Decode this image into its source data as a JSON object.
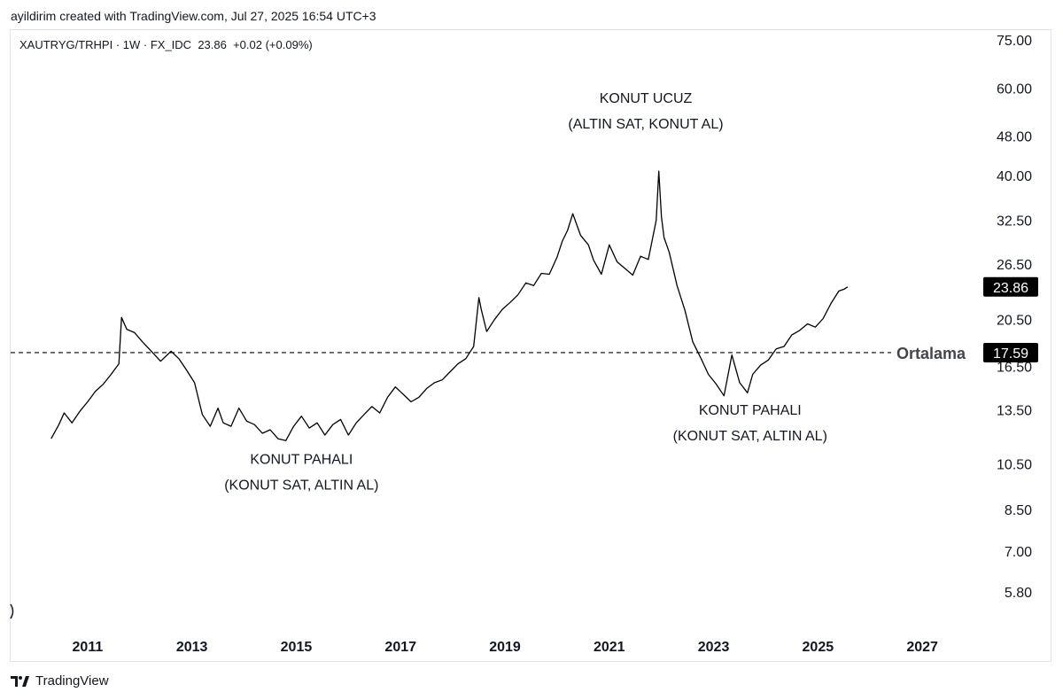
{
  "header": {
    "credit": "ayildirim created with TradingView.com, Jul 27, 2025 16:54 UTC+3"
  },
  "legend": {
    "symbol": "XAUTRYG/TRHPI",
    "interval": "1W",
    "source": "FX_IDC",
    "last": "23.86",
    "change": "+0.02 (+0.09%)"
  },
  "footer": {
    "brand": "TradingView"
  },
  "colors": {
    "line": "#000000",
    "text": "#131722",
    "grid_border": "#e0e3eb",
    "tag_bg": "#000000"
  },
  "chart_data": {
    "type": "line",
    "y_scale": "log",
    "ylim": [
      5.0,
      80.0
    ],
    "xlim": [
      2010.0,
      2028.0
    ],
    "y_ticks": [
      {
        "value": 75.0,
        "label": "75.00"
      },
      {
        "value": 60.0,
        "label": "60.00"
      },
      {
        "value": 48.0,
        "label": "48.00"
      },
      {
        "value": 40.0,
        "label": "40.00"
      },
      {
        "value": 32.5,
        "label": "32.50"
      },
      {
        "value": 26.5,
        "label": "26.50"
      },
      {
        "value": 20.5,
        "label": "20.50"
      },
      {
        "value": 16.5,
        "label": "16.50"
      },
      {
        "value": 13.5,
        "label": "13.50"
      },
      {
        "value": 10.5,
        "label": "10.50"
      },
      {
        "value": 8.5,
        "label": "8.50"
      },
      {
        "value": 7.0,
        "label": "7.00"
      },
      {
        "value": 5.8,
        "label": "5.80"
      }
    ],
    "x_ticks": [
      {
        "value": 2011,
        "label": "2011"
      },
      {
        "value": 2013,
        "label": "2013"
      },
      {
        "value": 2015,
        "label": "2015"
      },
      {
        "value": 2017,
        "label": "2017"
      },
      {
        "value": 2019,
        "label": "2019"
      },
      {
        "value": 2021,
        "label": "2021"
      },
      {
        "value": 2023,
        "label": "2023"
      },
      {
        "value": 2025,
        "label": "2025"
      },
      {
        "value": 2027,
        "label": "2027"
      }
    ],
    "series": [
      {
        "x": [
          2010.3,
          2010.45,
          2010.55,
          2010.7,
          2010.85,
          2011.0,
          2011.15,
          2011.3,
          2011.45,
          2011.6,
          2011.65,
          2011.75,
          2011.9,
          2012.05,
          2012.2,
          2012.4,
          2012.6,
          2012.75,
          2012.9,
          2013.05,
          2013.2,
          2013.35,
          2013.5,
          2013.6,
          2013.75,
          2013.9,
          2014.05,
          2014.2,
          2014.35,
          2014.5,
          2014.65,
          2014.8,
          2014.95,
          2015.1,
          2015.25,
          2015.4,
          2015.55,
          2015.7,
          2015.85,
          2016.0,
          2016.15,
          2016.3,
          2016.45,
          2016.6,
          2016.75,
          2016.9,
          2017.05,
          2017.2,
          2017.35,
          2017.5,
          2017.65,
          2017.8,
          2017.95,
          2018.1,
          2018.25,
          2018.4,
          2018.5,
          2018.55,
          2018.65,
          2018.8,
          2018.95,
          2019.1,
          2019.25,
          2019.4,
          2019.55,
          2019.7,
          2019.85,
          2020.0,
          2020.1,
          2020.2,
          2020.3,
          2020.45,
          2020.6,
          2020.7,
          2020.85,
          2021.0,
          2021.15,
          2021.3,
          2021.45,
          2021.6,
          2021.75,
          2021.9,
          2021.95,
          2022.0,
          2022.05,
          2022.15,
          2022.3,
          2022.45,
          2022.6,
          2022.75,
          2022.9,
          2023.05,
          2023.2,
          2023.35,
          2023.5,
          2023.65,
          2023.75,
          2023.9,
          2024.05,
          2024.2,
          2024.35,
          2024.5,
          2024.65,
          2024.8,
          2024.95,
          2025.1,
          2025.25,
          2025.4,
          2025.5,
          2025.57
        ],
        "values": [
          11.8,
          12.6,
          13.3,
          12.7,
          13.4,
          14.0,
          14.7,
          15.2,
          15.9,
          16.7,
          20.7,
          19.6,
          19.3,
          18.5,
          17.8,
          16.9,
          17.7,
          17.1,
          16.2,
          15.3,
          13.2,
          12.5,
          13.6,
          12.7,
          12.5,
          13.6,
          12.8,
          12.6,
          12.1,
          12.3,
          11.8,
          11.7,
          12.5,
          13.1,
          12.4,
          12.7,
          12.0,
          12.6,
          12.9,
          12.0,
          12.7,
          13.2,
          13.7,
          13.3,
          14.3,
          15.0,
          14.5,
          14.0,
          14.3,
          14.9,
          15.3,
          15.5,
          16.1,
          16.7,
          17.1,
          18.1,
          22.7,
          21.4,
          19.4,
          20.5,
          21.5,
          22.2,
          23.0,
          24.3,
          24.0,
          25.4,
          25.3,
          27.4,
          29.5,
          31.0,
          33.5,
          30.3,
          29.0,
          27.0,
          25.3,
          29.0,
          26.8,
          26.0,
          25.2,
          27.5,
          27.1,
          32.5,
          40.8,
          33.0,
          30.0,
          28.0,
          24.0,
          21.4,
          18.5,
          17.2,
          15.9,
          15.2,
          14.4,
          17.4,
          15.3,
          14.6,
          15.9,
          16.6,
          17.0,
          17.9,
          18.1,
          19.1,
          19.5,
          20.1,
          19.8,
          20.6,
          22.1,
          23.4,
          23.6,
          23.86
        ]
      }
    ],
    "mean_line": {
      "value": 17.59,
      "label": "Ortalama",
      "tag": "17.59"
    },
    "last_price_tag": {
      "value": 23.86,
      "tag": "23.86"
    },
    "annotations": [
      {
        "x": 2015.1,
        "value": 10.5,
        "lines": [
          "KONUT PAHALI",
          "(KONUT SAT, ALTIN AL)"
        ]
      },
      {
        "x": 2021.7,
        "value": 56.0,
        "lines": [
          "KONUT UCUZ",
          "(ALTIN SAT, KONUT AL)"
        ]
      },
      {
        "x": 2023.7,
        "value": 13.2,
        "lines": [
          "KONUT PAHALI",
          "(KONUT SAT, ALTIN AL)"
        ]
      }
    ]
  }
}
